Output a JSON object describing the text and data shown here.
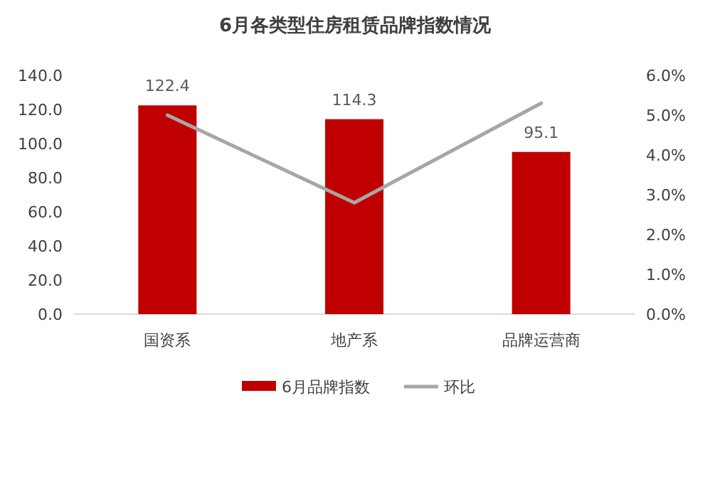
{
  "chart_data": {
    "type": "bar",
    "title": "6月各类型住房租赁品牌指数情况",
    "categories": [
      "国资系",
      "地产系",
      "品牌运营商"
    ],
    "series": [
      {
        "name": "6月品牌指数",
        "color": "#c00000",
        "values": [
          122.4,
          114.3,
          95.1
        ],
        "value_labels": [
          "122.4",
          "114.3",
          "95.1"
        ]
      },
      {
        "name": "环比",
        "type": "line",
        "axis": "y2",
        "color": "#a6a6a6",
        "values": [
          5.0,
          2.8,
          5.3
        ],
        "marker": "none"
      }
    ],
    "ylim": [
      0,
      140
    ],
    "yticks": [
      {
        "value": 0,
        "label": "0.0"
      },
      {
        "value": 20,
        "label": "20.0"
      },
      {
        "value": 40,
        "label": "40.0"
      },
      {
        "value": 60,
        "label": "60.0"
      },
      {
        "value": 80,
        "label": "80.0"
      },
      {
        "value": 100,
        "label": "100.0"
      },
      {
        "value": 120,
        "label": "120.0"
      },
      {
        "value": 140,
        "label": "140.0"
      }
    ],
    "y2lim": [
      0,
      6
    ],
    "y2ticks": [
      {
        "value": 0,
        "label": "0.0%"
      },
      {
        "value": 1,
        "label": "1.0%"
      },
      {
        "value": 2,
        "label": "2.0%"
      },
      {
        "value": 3,
        "label": "3.0%"
      },
      {
        "value": 4,
        "label": "4.0%"
      },
      {
        "value": 5,
        "label": "5.0%"
      },
      {
        "value": 6,
        "label": "6.0%"
      }
    ],
    "grid": false,
    "legend": "bottom"
  }
}
